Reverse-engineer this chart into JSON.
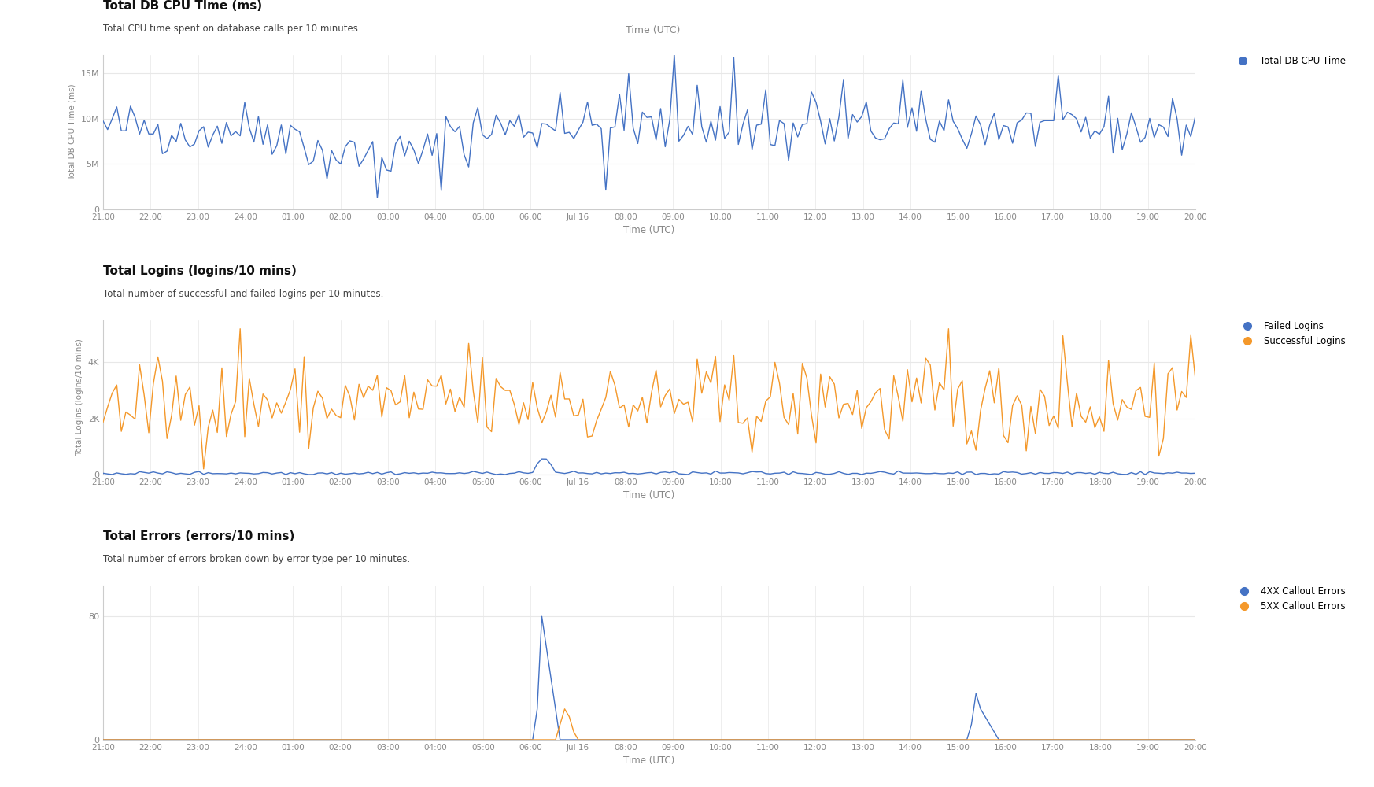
{
  "chart1_title": "Total DB CPU Time (ms)",
  "chart1_subtitle": "Total CPU time spent on database calls per 10 minutes.",
  "chart1_ylabel": "Total DB CPU Time (ms)",
  "chart1_legend": "Total DB CPU Time",
  "chart1_color": "#4472c4",
  "chart1_yticks": [
    0,
    5000000,
    10000000,
    15000000
  ],
  "chart1_ytick_labels": [
    "0",
    "5M",
    "10M",
    "15M"
  ],
  "chart1_ylim": [
    0,
    17000000
  ],
  "chart2_title": "Total Logins (logins/10 mins)",
  "chart2_subtitle": "Total number of successful and failed logins per 10 minutes.",
  "chart2_ylabel": "Total Logins (logins/10 mins)",
  "chart2_legend_failed": "Failed Logins",
  "chart2_legend_successful": "Successful Logins",
  "chart2_color_failed": "#4472c4",
  "chart2_color_successful": "#f4982a",
  "chart2_yticks": [
    0,
    2000,
    4000
  ],
  "chart2_ytick_labels": [
    "0",
    "2K",
    "4K"
  ],
  "chart2_ylim": [
    0,
    5500
  ],
  "chart3_title": "Total Errors (errors/10 mins)",
  "chart3_subtitle": "Total number of errors broken down by error type per 10 minutes.",
  "chart3_legend_4xx": "4XX Callout Errors",
  "chart3_legend_5xx": "5XX Callout Errors",
  "chart3_color_4xx": "#4472c4",
  "chart3_color_5xx": "#f4982a",
  "chart3_yticks": [
    0,
    80
  ],
  "chart3_ytick_labels": [
    "0",
    "80"
  ],
  "chart3_ylim": [
    0,
    100
  ],
  "xtick_labels": [
    "21:00",
    "22:00",
    "23:00",
    "24:00",
    "01:00",
    "02:00",
    "03:00",
    "04:00",
    "05:00",
    "06:00",
    "Jul 16",
    "08:00",
    "09:00",
    "10:00",
    "11:00",
    "12:00",
    "13:00",
    "14:00",
    "15:00",
    "16:00",
    "17:00",
    "18:00",
    "19:00",
    "20:00"
  ],
  "xlabel": "Time (UTC)",
  "bg_color": "#ffffff",
  "plot_bg_color": "#ffffff",
  "grid_color": "#e8e8e8",
  "text_color": "#111111",
  "subtitle_color": "#444444",
  "axis_color": "#cccccc",
  "tick_color": "#888888"
}
